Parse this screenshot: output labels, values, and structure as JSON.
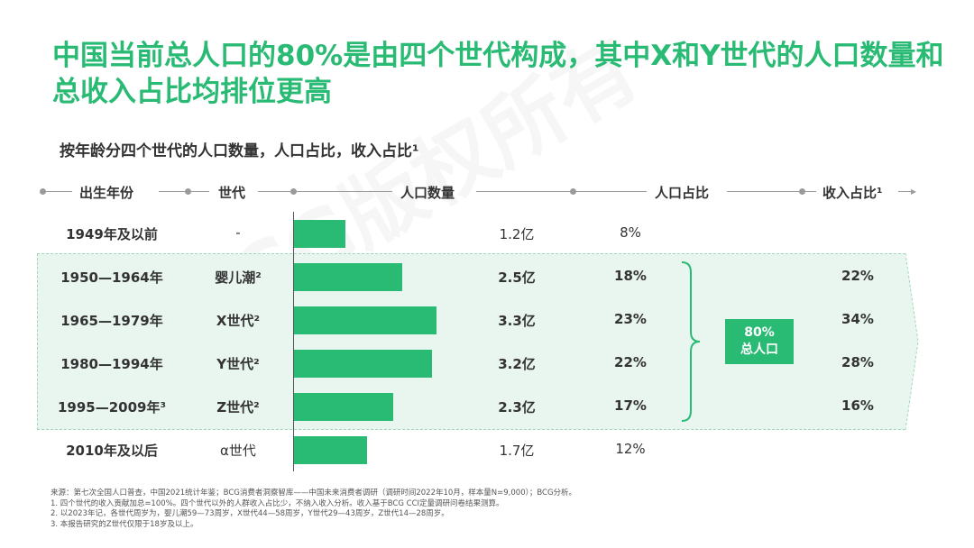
{
  "title": "中国当前总人口的80%是由四个世代构成，其中X和Y世代的人口数量和总收入占比均排位更高",
  "subtitle": "按年龄分四个世代的人口数量，人口占比，收入占比¹",
  "headers": {
    "birth_year": "出生年份",
    "generation": "世代",
    "population": "人口数量",
    "pop_share": "人口占比",
    "income_share": "收入占比¹"
  },
  "badge": {
    "line1": "80%",
    "line2": "总人口"
  },
  "watermark": "BCG版权所有",
  "chart_data": {
    "type": "bar",
    "orientation": "horizontal",
    "unit": "亿",
    "rows": [
      {
        "birth_year": "1949年及以前",
        "generation": "-",
        "population": 1.2,
        "population_label": "1.2亿",
        "pop_share": "8%",
        "income_share": ""
      },
      {
        "birth_year": "1950—1964年",
        "generation": "婴儿潮²",
        "population": 2.5,
        "population_label": "2.5亿",
        "pop_share": "18%",
        "income_share": "22%"
      },
      {
        "birth_year": "1965—1979年",
        "generation": "X世代²",
        "population": 3.3,
        "population_label": "3.3亿",
        "pop_share": "23%",
        "income_share": "34%"
      },
      {
        "birth_year": "1980—1994年",
        "generation": "Y世代²",
        "population": 3.2,
        "population_label": "3.2亿",
        "pop_share": "22%",
        "income_share": "28%"
      },
      {
        "birth_year": "1995—2009年³",
        "generation": "Z世代²",
        "population": 2.3,
        "population_label": "2.3亿",
        "pop_share": "17%",
        "income_share": "16%"
      },
      {
        "birth_year": "2010年及以后",
        "generation": "α世代",
        "population": 1.7,
        "population_label": "1.7亿",
        "pop_share": "12%",
        "income_share": ""
      }
    ],
    "xlim": [
      0,
      4.6
    ]
  },
  "notes": {
    "source": "来源：第七次全国人口普查，中国2021统计年鉴；BCG消费者洞察智库——中国未来消费者调研（调研时间2022年10月，样本量N=9,000）；BCG分析。",
    "n1": "1. 四个世代的收入贡献加总=100%。四个世代以外的人群收入占比少，不纳入收入分析。收入基于BCG CCI定量调研问卷结果测算。",
    "n2": "2. 以2023年记，各世代周岁为，婴儿潮59—73周岁，X世代44—58周岁，Y世代29—43周岁，Z世代14—28周岁。",
    "n3": "3. 本报告研究的Z世代仅限于18岁及以上。"
  },
  "colors": {
    "accent": "#29ba74",
    "band": "#e9f6ef"
  }
}
